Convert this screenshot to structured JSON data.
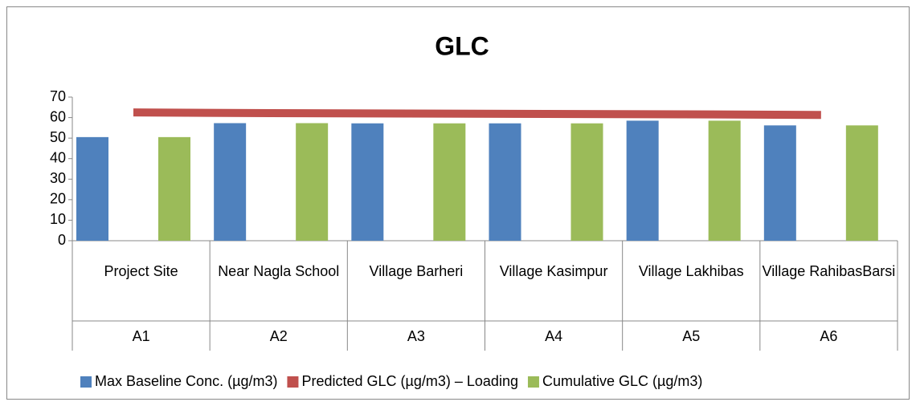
{
  "chart_data": {
    "type": "bar",
    "title": "GLC",
    "categories": [
      "Project Site",
      "Near Nagla School",
      "Village Barheri",
      "Village Kasimpur",
      "Village Lakhibas",
      "Village RahibasBarsi"
    ],
    "category_codes": [
      "A1",
      "A2",
      "A3",
      "A4",
      "A5",
      "A6"
    ],
    "series": [
      {
        "name": "Max Baseline Conc. (µg/m3)",
        "color": "#4f81bd",
        "values": [
          50.5,
          57.3,
          57.2,
          57.2,
          58.5,
          56.2
        ]
      },
      {
        "name": "Predicted GLC (µg/m3) – Loading",
        "color": "#c0504d",
        "mark": "line",
        "values": [
          62.5,
          62.2,
          62,
          61.8,
          61.6,
          61.3
        ]
      },
      {
        "name": "Cumulative GLC (µg/m3)",
        "color": "#9bbb59",
        "values": [
          50.5,
          57.3,
          57.2,
          57.2,
          58.5,
          56.2
        ]
      }
    ],
    "ylim": [
      0,
      70
    ],
    "yticks": [
      0,
      10,
      20,
      30,
      40,
      50,
      60,
      70
    ],
    "grid": false,
    "legend": "bottom"
  }
}
